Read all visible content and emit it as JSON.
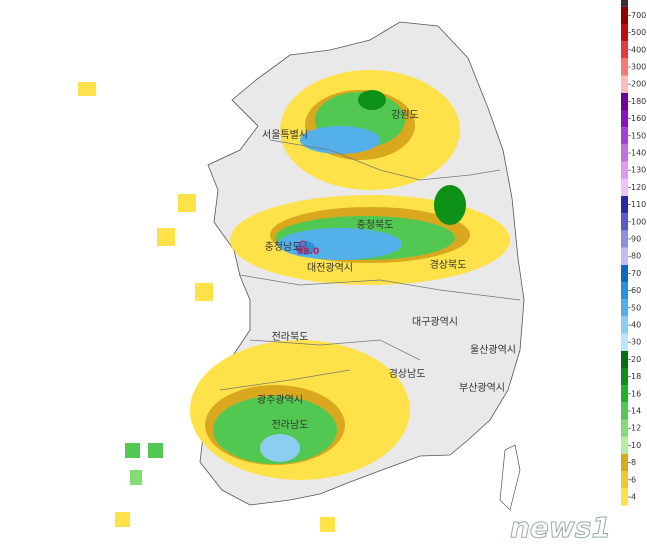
{
  "map": {
    "regions": [
      "강원도",
      "서울특별시",
      "충청북도",
      "충청남도",
      "대전광역시",
      "경상북도",
      "대구광역시",
      "전라북도",
      "울산광역시",
      "경상남도",
      "부산광역시",
      "광주광역시",
      "전라남도"
    ],
    "max_label": "98.0",
    "watermark": "news1",
    "legend": {
      "levels": [
        4,
        6,
        8,
        10,
        12,
        14,
        16,
        18,
        20,
        30,
        40,
        50,
        60,
        70,
        80,
        90,
        100,
        110,
        120,
        130,
        140,
        150,
        160,
        180,
        200,
        300,
        400,
        500,
        700
      ],
      "colors": [
        "#ffe24a",
        "#f2c733",
        "#d9a81f",
        "#b9ec9f",
        "#84dc74",
        "#52c852",
        "#22b02a",
        "#0c9016",
        "#037010",
        "#bfe4fa",
        "#8ccdf2",
        "#54b0e8",
        "#2a90dc",
        "#0a6cc0",
        "#c0c0ec",
        "#8f8fdc",
        "#5a5ac8",
        "#2a2aa4",
        "#ecc4f6",
        "#dc9cee",
        "#c46ee4",
        "#a43ed4",
        "#8a14bc",
        "#6e0098",
        "#ffbcbc",
        "#f47a7a",
        "#e03c3c",
        "#c00c0c",
        "#8a0000"
      ],
      "cap_color": "#333333"
    }
  }
}
